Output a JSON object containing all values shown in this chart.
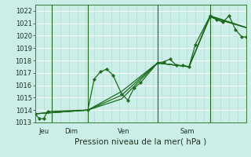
{
  "bg_color": "#cceee8",
  "grid_color": "#aaddcc",
  "line_color": "#1a6b1a",
  "marker_color": "#1a6b1a",
  "xlabel": "Pression niveau de la mer( hPa )",
  "ylim": [
    1013,
    1022.5
  ],
  "yticks": [
    1013,
    1014,
    1015,
    1016,
    1017,
    1018,
    1019,
    1020,
    1021,
    1022
  ],
  "xlim": [
    0,
    100
  ],
  "vlines_x": [
    8,
    25,
    58,
    83
  ],
  "day_labels": [
    [
      "Jeu",
      4
    ],
    [
      "Dim",
      17
    ],
    [
      "Ven",
      42
    ],
    [
      "Sam",
      72
    ]
  ],
  "series": [
    {
      "x": [
        0,
        2,
        4,
        6,
        25,
        28,
        31,
        34,
        37,
        41,
        44,
        47,
        50,
        58,
        61,
        64,
        67,
        70,
        73,
        76,
        83,
        86,
        89,
        92,
        95,
        98,
        100,
        103
      ],
      "y": [
        1013.7,
        1013.3,
        1013.3,
        1013.9,
        1014.0,
        1016.5,
        1017.1,
        1017.3,
        1016.8,
        1015.3,
        1014.8,
        1015.8,
        1016.2,
        1017.8,
        1017.9,
        1018.1,
        1017.6,
        1017.6,
        1017.5,
        1019.3,
        1021.6,
        1021.3,
        1021.1,
        1021.6,
        1020.5,
        1019.9,
        1019.9,
        1020.5
      ],
      "markers": true
    },
    {
      "x": [
        0,
        25,
        41,
        58,
        73,
        83,
        103
      ],
      "y": [
        1013.7,
        1014.0,
        1014.9,
        1017.8,
        1017.5,
        1021.5,
        1020.5
      ],
      "markers": false
    },
    {
      "x": [
        0,
        25,
        41,
        58,
        73,
        83,
        103
      ],
      "y": [
        1013.7,
        1014.0,
        1015.5,
        1017.8,
        1017.5,
        1021.6,
        1020.5
      ],
      "markers": false
    },
    {
      "x": [
        0,
        25,
        41,
        58,
        73,
        83,
        103
      ],
      "y": [
        1013.7,
        1014.0,
        1015.2,
        1017.8,
        1017.5,
        1021.6,
        1020.5
      ],
      "markers": false
    }
  ]
}
